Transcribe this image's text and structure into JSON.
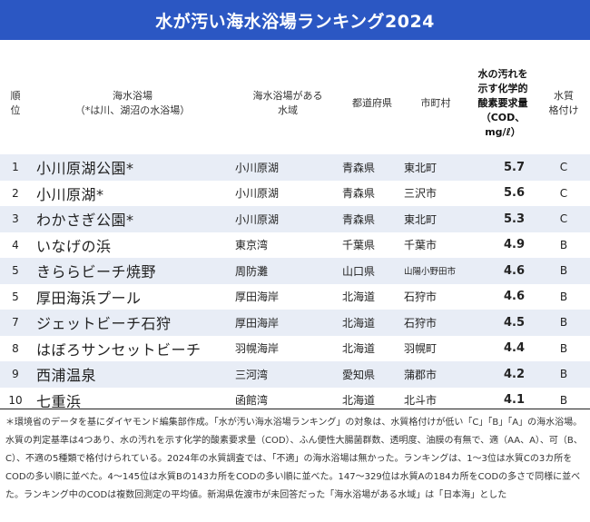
{
  "title": "水が汚い海水浴場ランキング2024",
  "headers": {
    "rank": [
      "順",
      "位"
    ],
    "name": [
      "海水浴場",
      "（*は川、湖沼の水浴場）"
    ],
    "water": [
      "海水浴場がある",
      "水域"
    ],
    "pref": "都道府県",
    "city": "市町村",
    "cod": [
      "水の汚れを",
      "示す化学的",
      "酸素要求量",
      "（COD、",
      "mg/ℓ）"
    ],
    "grade": [
      "水質",
      "格付け"
    ]
  },
  "rows": [
    {
      "rank": "1",
      "name": "小川原湖公園*",
      "water": "小川原湖",
      "pref": "青森県",
      "city": "東北町",
      "cod": "5.7",
      "grade": "C"
    },
    {
      "rank": "2",
      "name": "小川原湖*",
      "water": "小川原湖",
      "pref": "青森県",
      "city": "三沢市",
      "cod": "5.6",
      "grade": "C"
    },
    {
      "rank": "3",
      "name": "わかさぎ公園*",
      "water": "小川原湖",
      "pref": "青森県",
      "city": "東北町",
      "cod": "5.3",
      "grade": "C"
    },
    {
      "rank": "4",
      "name": "いなげの浜",
      "water": "東京湾",
      "pref": "千葉県",
      "city": "千葉市",
      "cod": "4.9",
      "grade": "B"
    },
    {
      "rank": "5",
      "name": "きららビーチ焼野",
      "water": "周防灘",
      "pref": "山口県",
      "city": "山陽小野田市",
      "cod": "4.6",
      "grade": "B"
    },
    {
      "rank": "5",
      "name": "厚田海浜プール",
      "water": "厚田海岸",
      "pref": "北海道",
      "city": "石狩市",
      "cod": "4.6",
      "grade": "B"
    },
    {
      "rank": "7",
      "name": "ジェットビーチ石狩",
      "water": "厚田海岸",
      "pref": "北海道",
      "city": "石狩市",
      "cod": "4.5",
      "grade": "B"
    },
    {
      "rank": "8",
      "name": "はぼろサンセットビーチ",
      "water": "羽幌海岸",
      "pref": "北海道",
      "city": "羽幌町",
      "cod": "4.4",
      "grade": "B"
    },
    {
      "rank": "9",
      "name": "西浦温泉",
      "water": "三河湾",
      "pref": "愛知県",
      "city": "蒲郡市",
      "cod": "4.2",
      "grade": "B"
    },
    {
      "rank": "10",
      "name": "七重浜",
      "water": "函館湾",
      "pref": "北海道",
      "city": "北斗市",
      "cod": "4.1",
      "grade": "B"
    }
  ],
  "note": "＊環境省のデータを基にダイヤモンド編集部作成。「水が汚い海水浴場ランキング」の対象は、水質格付けが低い「C」「B」「A」の海水浴場。水質の判定基準は4つあり、水の汚れを示す化学的酸素要求量（COD）、ふん便性大腸菌群数、透明度、油膜の有無で、適（AA、A）、可（B、C）、不適の5種類で格付けられている。2024年の水質調査では、「不適」の海水浴場は無かった。ランキングは、1～3位は水質Cの3カ所をCODの多い順に並べた。4～145位は水質Bの143カ所をCODの多い順に並べた。147～329位は水質Aの184カ所をCODの多さで同様に並べた。ランキング中のCODは複数回測定の平均値。新潟県佐渡市が未回答だった「海水浴場がある水域」は「日本海」とした"
}
